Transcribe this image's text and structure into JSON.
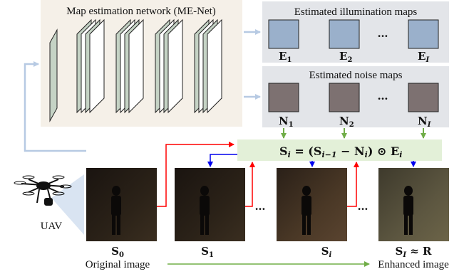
{
  "network": {
    "title": "Map estimation network (ME-Net)"
  },
  "illumination": {
    "title": "Estimated illumination maps",
    "maps": [
      "E",
      "E",
      "E"
    ],
    "subs": [
      "1",
      "2",
      "I"
    ],
    "ellipsis": "…",
    "color": "#9ab0cb"
  },
  "noise": {
    "title": "Estimated noise maps",
    "maps": [
      "N",
      "N",
      "N"
    ],
    "subs": [
      "1",
      "2",
      "I"
    ],
    "ellipsis": "…",
    "color": "#7d7171"
  },
  "formula": {
    "lhs": "S",
    "lhs_sub": "i",
    "eq": " = (",
    "s_prev": "S",
    "s_prev_sub": "i−1",
    "minus": " − ",
    "n": "N",
    "n_sub": "i",
    "close": ") ⊙ ",
    "e": "E",
    "e_sub": "i"
  },
  "images": {
    "labels": [
      {
        "main": "S",
        "sub": "0"
      },
      {
        "main": "S",
        "sub": "1"
      },
      {
        "main": "S",
        "sub": "i"
      },
      {
        "main": "S",
        "sub": "I",
        "suffix": " ≈ R"
      }
    ],
    "ellipses": [
      "…",
      "…"
    ]
  },
  "captions": {
    "uav": "UAV",
    "original": "Original image",
    "enhanced": "Enhanced image"
  },
  "colors": {
    "panel_bg": "#e3e5e9",
    "formula_bg": "#e3f0d8",
    "arrow_blue": "#b7cae3",
    "arrow_green": "#70ad47",
    "arrow_red": "#ff0000",
    "arrow_darkblue": "#0000ee",
    "layer_green": "#c5d3c5"
  }
}
